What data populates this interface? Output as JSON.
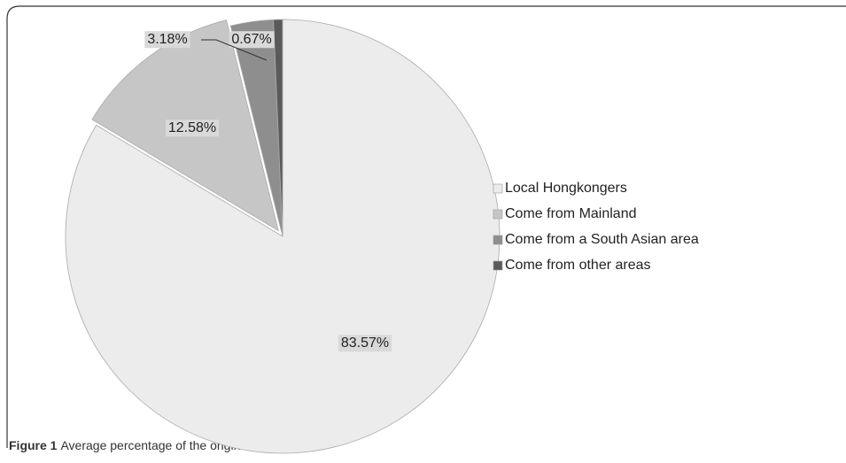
{
  "chart_data": {
    "type": "pie",
    "categories": [
      "Local Hongkongers",
      "Come from Mainland",
      "Come from a South Asian area",
      "Come from other areas"
    ],
    "values": [
      83.57,
      12.58,
      3.18,
      0.67
    ],
    "value_labels": [
      "83.57%",
      "12.58%",
      "3.18%",
      "0.67%"
    ],
    "colors": [
      "#ececec",
      "#c6c6c6",
      "#8e8e8e",
      "#5a5a5a"
    ],
    "legend": "right"
  },
  "figure": {
    "label": "Figure 1",
    "caption": "Average percentage of the origins of students."
  }
}
